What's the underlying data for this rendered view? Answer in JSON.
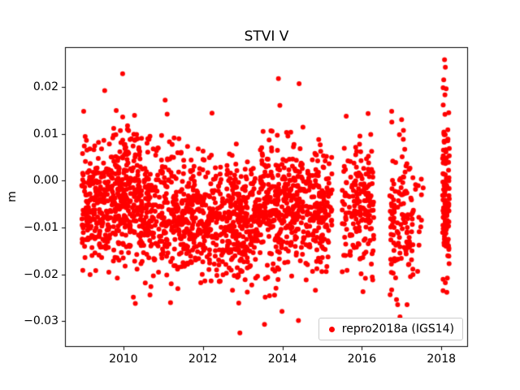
{
  "legend": {
    "label": "repro2018a (IGS14)"
  },
  "colors": {
    "marker": "#ff0000",
    "axis": "#000000",
    "background": "#ffffff",
    "legend_border": "#cccccc"
  },
  "chart_data": {
    "type": "scatter",
    "title": "STVI V",
    "xlabel": "",
    "ylabel": "m",
    "xlim": [
      2008.53,
      2018.67
    ],
    "ylim": [
      -0.0355,
      0.0285
    ],
    "grid": false,
    "legend_position": "lower right",
    "xticks": [
      {
        "v": 2010,
        "label": "2010"
      },
      {
        "v": 2012,
        "label": "2012"
      },
      {
        "v": 2014,
        "label": "2014"
      },
      {
        "v": 2016,
        "label": "2016"
      },
      {
        "v": 2018,
        "label": "2018"
      }
    ],
    "yticks": [
      {
        "v": 0.02,
        "label": "0.02"
      },
      {
        "v": 0.01,
        "label": "0.01"
      },
      {
        "v": 0.0,
        "label": "0.00"
      },
      {
        "v": -0.01,
        "label": "−0.01"
      },
      {
        "v": -0.02,
        "label": "−0.02"
      },
      {
        "v": -0.03,
        "label": "−0.03"
      }
    ],
    "series": [
      {
        "name": "repro2018a (IGS14)",
        "color": "#ff0000",
        "marker": "circle",
        "marker_radius_px": 3
      }
    ],
    "point_generation": {
      "seed": 42,
      "y_clamp": [
        -0.0335,
        0.0235
      ],
      "clusters": [
        {
          "x_start": 2008.95,
          "x_end": 2009.7,
          "count": 230,
          "y_mean": -0.005,
          "y_std": 0.0062
        },
        {
          "x_start": 2009.7,
          "x_end": 2010.45,
          "count": 260,
          "y_mean": -0.003,
          "y_std": 0.0075
        },
        {
          "x_start": 2010.45,
          "x_end": 2011.4,
          "count": 250,
          "y_mean": -0.0065,
          "y_std": 0.0072
        },
        {
          "x_start": 2011.4,
          "x_end": 2012.4,
          "count": 270,
          "y_mean": -0.008,
          "y_std": 0.0066
        },
        {
          "x_start": 2012.4,
          "x_end": 2013.4,
          "count": 290,
          "y_mean": -0.0088,
          "y_std": 0.0063
        },
        {
          "x_start": 2013.4,
          "x_end": 2014.35,
          "count": 260,
          "y_mean": -0.0055,
          "y_std": 0.0073
        },
        {
          "x_start": 2014.35,
          "x_end": 2015.25,
          "count": 230,
          "y_mean": -0.006,
          "y_std": 0.0068
        },
        {
          "x_start": 2015.5,
          "x_end": 2016.3,
          "count": 185,
          "y_mean": -0.005,
          "y_std": 0.0068
        },
        {
          "x_start": 2016.7,
          "x_end": 2017.3,
          "count": 125,
          "y_mean": -0.0075,
          "y_std": 0.0078
        },
        {
          "x_start": 2017.32,
          "x_end": 2017.55,
          "count": 12,
          "y_mean": -0.006,
          "y_std": 0.007
        },
        {
          "x_start": 2018.03,
          "x_end": 2018.2,
          "count": 120,
          "y_mean": -0.004,
          "y_std": 0.0092
        }
      ],
      "outliers": [
        [
          2009.98,
          0.0228
        ],
        [
          2013.9,
          0.0218
        ],
        [
          2014.42,
          0.0207
        ],
        [
          2018.08,
          0.0258
        ],
        [
          2018.1,
          0.0242
        ],
        [
          2018.12,
          0.0196
        ],
        [
          2018.09,
          0.0183
        ],
        [
          2012.93,
          -0.0325
        ],
        [
          2013.55,
          -0.0307
        ],
        [
          2015.98,
          -0.0318
        ],
        [
          2016.9,
          -0.0265
        ],
        [
          2010.3,
          -0.0262
        ],
        [
          2018.1,
          -0.0218
        ],
        [
          2018.15,
          -0.0208
        ],
        [
          2009.0,
          0.0148
        ],
        [
          2011.05,
          0.0172
        ],
        [
          2016.75,
          0.0148
        ],
        [
          2017.0,
          0.013
        ]
      ]
    }
  }
}
